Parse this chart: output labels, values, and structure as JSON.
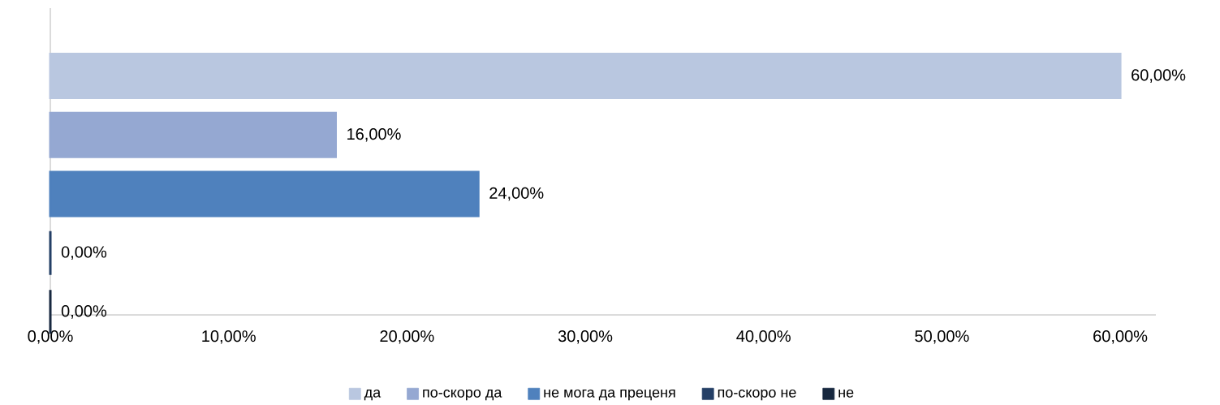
{
  "chart_data": {
    "type": "bar",
    "orientation": "horizontal",
    "categories": [
      null
    ],
    "series": [
      {
        "name": "да",
        "color": "#b9c7e0",
        "values": [
          60
        ],
        "value_labels": [
          "60,00%"
        ]
      },
      {
        "name": "по-скоро да",
        "color": "#95a8d2",
        "values": [
          16
        ],
        "value_labels": [
          "16,00%"
        ]
      },
      {
        "name": "не мога да преценя",
        "color": "#4f81bd",
        "values": [
          24
        ],
        "value_labels": [
          "24,00%"
        ]
      },
      {
        "name": "по-скоро не",
        "color": "#243f66",
        "values": [
          0
        ],
        "value_labels": [
          "0,00%"
        ]
      },
      {
        "name": "не",
        "color": "#17283f",
        "values": [
          0
        ],
        "value_labels": [
          "0,00%"
        ]
      }
    ],
    "xlim": [
      0,
      62
    ],
    "xticks": [
      {
        "value": 0,
        "label": "0,00%"
      },
      {
        "value": 10,
        "label": "10,00%"
      },
      {
        "value": 20,
        "label": "20,00%"
      },
      {
        "value": 30,
        "label": "30,00%"
      },
      {
        "value": 40,
        "label": "40,00%"
      },
      {
        "value": 50,
        "label": "50,00%"
      },
      {
        "value": 60,
        "label": "60,00%"
      }
    ],
    "legend": "bottom"
  }
}
